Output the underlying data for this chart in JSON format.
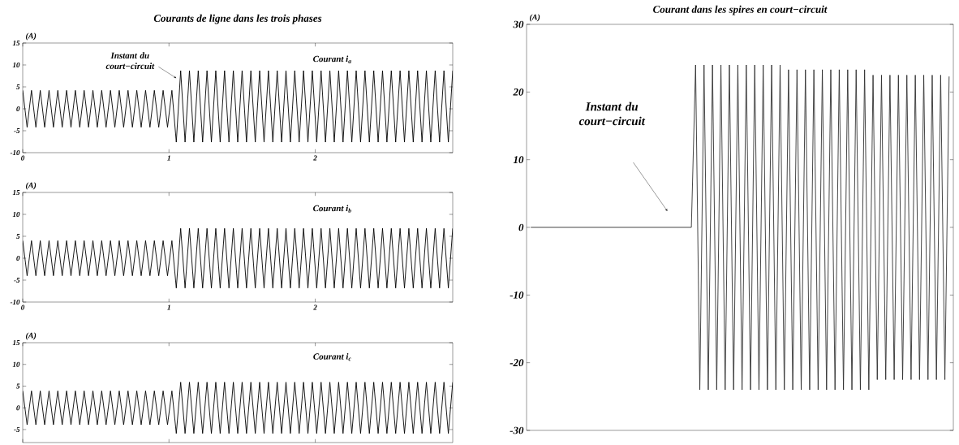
{
  "chart_data": [
    {
      "type": "line",
      "title": "Courants de ligne dans les trois phases",
      "ylabel": "(A)",
      "x": [
        0,
        0.03,
        0.06,
        0.09,
        0.12,
        0.15,
        0.18,
        0.21,
        0.24,
        0.27,
        0.3,
        0.33,
        0.36,
        0.39,
        0.42,
        0.45,
        0.48,
        0.51,
        0.54,
        0.57,
        0.6,
        0.63,
        0.66,
        0.69,
        0.72,
        0.75,
        0.78,
        0.81,
        0.84,
        0.87,
        0.9,
        0.93,
        0.96,
        0.99,
        1.02,
        1.05,
        1.08,
        1.11,
        1.14,
        1.17,
        1.2,
        1.23,
        1.26,
        1.29,
        1.32,
        1.35,
        1.38,
        1.41,
        1.44,
        1.47,
        1.5,
        1.53,
        1.56,
        1.59,
        1.62,
        1.65,
        1.68,
        1.71,
        1.74,
        1.77,
        1.8,
        1.83,
        1.86,
        1.89,
        1.92,
        1.95,
        1.98,
        2.01,
        2.04,
        2.07,
        2.1,
        2.13,
        2.16,
        2.19,
        2.22,
        2.25,
        2.28,
        2.31,
        2.34,
        2.37,
        2.4,
        2.43,
        2.46,
        2.49,
        2.52,
        2.55,
        2.58,
        2.61,
        2.64,
        2.67,
        2.7,
        2.73,
        2.76,
        2.79,
        2.82,
        2.85,
        2.88,
        2.91,
        2.94
      ],
      "series": [
        {
          "color": "#000000",
          "values": [
            4.2,
            -4.2,
            4.2,
            -4.2,
            4.2,
            -4.2,
            4.2,
            -4.2,
            4.2,
            -4.2,
            4.2,
            -4.2,
            4.2,
            -4.2,
            4.2,
            -4.2,
            4.2,
            -4.2,
            4.2,
            -4.2,
            4.2,
            -4.2,
            4.2,
            -4.2,
            4.2,
            -4.2,
            4.2,
            -4.2,
            4.2,
            -4.2,
            4.2,
            -4.2,
            4.2,
            -4.2,
            4.2,
            -7.6,
            8.7,
            -7.6,
            8.7,
            -7.6,
            8.7,
            -7.6,
            8.7,
            -7.6,
            8.7,
            -7.6,
            8.7,
            -7.6,
            8.7,
            -7.6,
            8.7,
            -7.6,
            8.7,
            -7.6,
            8.7,
            -7.6,
            8.7,
            -7.6,
            8.7,
            -7.6,
            8.7,
            -7.6,
            8.7,
            -7.6,
            8.7,
            -7.6,
            8.7,
            -7.6,
            8.7,
            -7.6,
            8.7,
            -7.6,
            8.7,
            -7.6,
            8.7,
            -7.6,
            8.7,
            -7.6,
            8.7,
            -7.6,
            8.7,
            -7.6,
            8.7,
            -7.6,
            8.7,
            -7.6,
            8.7,
            -7.6,
            8.7,
            -7.6,
            8.7,
            -7.6,
            8.7,
            -7.6,
            8.7,
            -7.6,
            8.7,
            -7.6,
            8.7
          ]
        }
      ],
      "xlim": [
        0,
        2.94
      ],
      "ylim": [
        -10,
        15
      ],
      "xticks": [
        0,
        1,
        2
      ],
      "yticks": [
        -10,
        -5,
        0,
        5,
        10,
        15
      ],
      "annotations": [
        {
          "text": "Instant du court−circuit",
          "x": 1.05,
          "y": 7
        },
        "Courant i$_{a}$"
      ]
    },
    {
      "type": "line",
      "ylabel": "(A)",
      "x": [
        0,
        0.03,
        0.06,
        0.09,
        0.12,
        0.15,
        0.18,
        0.21,
        0.24,
        0.27,
        0.3,
        0.33,
        0.36,
        0.39,
        0.42,
        0.45,
        0.48,
        0.51,
        0.54,
        0.57,
        0.6,
        0.63,
        0.66,
        0.69,
        0.72,
        0.75,
        0.78,
        0.81,
        0.84,
        0.87,
        0.9,
        0.93,
        0.96,
        0.99,
        1.02,
        1.05,
        1.08,
        1.11,
        1.14,
        1.17,
        1.2,
        1.23,
        1.26,
        1.29,
        1.32,
        1.35,
        1.38,
        1.41,
        1.44,
        1.47,
        1.5,
        1.53,
        1.56,
        1.59,
        1.62,
        1.65,
        1.68,
        1.71,
        1.74,
        1.77,
        1.8,
        1.83,
        1.86,
        1.89,
        1.92,
        1.95,
        1.98,
        2.01,
        2.04,
        2.07,
        2.1,
        2.13,
        2.16,
        2.19,
        2.22,
        2.25,
        2.28,
        2.31,
        2.34,
        2.37,
        2.4,
        2.43,
        2.46,
        2.49,
        2.52,
        2.55,
        2.58,
        2.61,
        2.64,
        2.67,
        2.7,
        2.73,
        2.76,
        2.79,
        2.82,
        2.85,
        2.88,
        2.91,
        2.94
      ],
      "series": [
        {
          "color": "#000000",
          "values": [
            4,
            -4,
            4,
            -4,
            4,
            -4,
            4,
            -4,
            4,
            -4,
            4,
            -4,
            4,
            -4,
            4,
            -4,
            4,
            -4,
            4,
            -4,
            4,
            -4,
            4,
            -4,
            4,
            -4,
            4,
            -4,
            4,
            -4,
            4,
            -4,
            4,
            -4,
            4,
            -6.8,
            6.8,
            -6.8,
            6.8,
            -6.8,
            6.8,
            -6.8,
            6.8,
            -6.8,
            6.8,
            -6.8,
            6.8,
            -6.8,
            6.8,
            -6.8,
            6.8,
            -6.8,
            6.8,
            -6.8,
            6.8,
            -6.8,
            6.8,
            -6.8,
            6.8,
            -6.8,
            6.8,
            -6.8,
            6.8,
            -6.8,
            6.8,
            -6.8,
            6.8,
            -6.8,
            6.8,
            -6.8,
            6.8,
            -6.8,
            6.8,
            -6.8,
            6.8,
            -6.8,
            6.8,
            -6.8,
            6.8,
            -6.8,
            6.8,
            -6.8,
            6.8,
            -6.8,
            6.8,
            -6.8,
            6.8,
            -6.8,
            6.8,
            -6.8,
            6.8,
            -6.8,
            6.8,
            -6.8,
            6.8,
            -6.8,
            6.8,
            -6.8,
            6.8
          ]
        }
      ],
      "xlim": [
        0,
        2.94
      ],
      "ylim": [
        -10,
        15
      ],
      "xticks": [
        0,
        1,
        2
      ],
      "yticks": [
        -10,
        -5,
        0,
        5,
        10,
        15
      ],
      "annotations": [
        "Courant i$_{b}$"
      ]
    },
    {
      "type": "line",
      "ylabel": "(A)",
      "x": [
        0,
        0.03,
        0.06,
        0.09,
        0.12,
        0.15,
        0.18,
        0.21,
        0.24,
        0.27,
        0.3,
        0.33,
        0.36,
        0.39,
        0.42,
        0.45,
        0.48,
        0.51,
        0.54,
        0.57,
        0.6,
        0.63,
        0.66,
        0.69,
        0.72,
        0.75,
        0.78,
        0.81,
        0.84,
        0.87,
        0.9,
        0.93,
        0.96,
        0.99,
        1.02,
        1.05,
        1.08,
        1.11,
        1.14,
        1.17,
        1.2,
        1.23,
        1.26,
        1.29,
        1.32,
        1.35,
        1.38,
        1.41,
        1.44,
        1.47,
        1.5,
        1.53,
        1.56,
        1.59,
        1.62,
        1.65,
        1.68,
        1.71,
        1.74,
        1.77,
        1.8,
        1.83,
        1.86,
        1.89,
        1.92,
        1.95,
        1.98,
        2.01,
        2.04,
        2.07,
        2.1,
        2.13,
        2.16,
        2.19,
        2.22,
        2.25,
        2.28,
        2.31,
        2.34,
        2.37,
        2.4,
        2.43,
        2.46,
        2.49,
        2.52,
        2.55,
        2.58,
        2.61,
        2.64,
        2.67,
        2.7,
        2.73,
        2.76,
        2.79,
        2.82,
        2.85,
        2.88,
        2.91,
        2.94
      ],
      "series": [
        {
          "color": "#000000",
          "values": [
            3.9,
            -3.9,
            3.9,
            -3.9,
            3.9,
            -3.9,
            3.9,
            -3.9,
            3.9,
            -3.9,
            3.9,
            -3.9,
            3.9,
            -3.9,
            3.9,
            -3.9,
            3.9,
            -3.9,
            3.9,
            -3.9,
            3.9,
            -3.9,
            3.9,
            -3.9,
            3.9,
            -3.9,
            3.9,
            -3.9,
            3.9,
            -3.9,
            3.9,
            -3.9,
            3.9,
            -3.9,
            3.9,
            -5.9,
            5.9,
            -5.9,
            5.9,
            -5.9,
            5.9,
            -5.9,
            5.9,
            -5.9,
            5.9,
            -5.9,
            5.9,
            -5.9,
            5.9,
            -5.9,
            5.9,
            -5.9,
            5.9,
            -5.9,
            5.9,
            -5.9,
            5.9,
            -5.9,
            5.9,
            -5.9,
            5.9,
            -5.9,
            5.9,
            -5.9,
            5.9,
            -5.9,
            5.9,
            -5.9,
            5.9,
            -5.9,
            5.9,
            -5.9,
            5.9,
            -5.9,
            5.9,
            -5.9,
            5.9,
            -5.9,
            5.9,
            -5.9,
            5.9,
            -5.9,
            5.9,
            -5.9,
            5.9,
            -5.9,
            5.9,
            -5.9,
            5.9,
            -5.9,
            5.9,
            -5.9,
            5.9,
            -5.9,
            5.9,
            -5.9,
            5.9,
            -5.9,
            5.9
          ]
        }
      ],
      "xlim": [
        0,
        2.94
      ],
      "ylim": [
        -8,
        15
      ],
      "xticks": [
        {
          "value": 0,
          "label": null
        },
        {
          "value": 1,
          "label": null
        },
        {
          "value": 2,
          "label": null
        }
      ],
      "yticks": [
        -5,
        0,
        5,
        10,
        15
      ],
      "tick_labels": "y",
      "annotations": [
        "Courant i$_{c}$"
      ]
    },
    {
      "type": "line",
      "title": "Courant dans les spires en court−circuit",
      "ylabel": "(A)",
      "categories": [
        null,
        null,
        null,
        null,
        null,
        null,
        null,
        null,
        null,
        null,
        null,
        null,
        null,
        null,
        null,
        null,
        null,
        null,
        null,
        null,
        null,
        null,
        null,
        null,
        null,
        null,
        null,
        null,
        null,
        null,
        null,
        null,
        null,
        null,
        null,
        null,
        null,
        null,
        null,
        null,
        null,
        null,
        null,
        null,
        null,
        null,
        null,
        null,
        null,
        null,
        null,
        null,
        null,
        null,
        null,
        null,
        null,
        null,
        null,
        null,
        null,
        null,
        null,
        null,
        null,
        null,
        null,
        null,
        null,
        null,
        null,
        null,
        null,
        null,
        null,
        null,
        null,
        null,
        null,
        null,
        null,
        null,
        null,
        null,
        null,
        null,
        null,
        null,
        null,
        null,
        null,
        null,
        null,
        null,
        null,
        null,
        null,
        null,
        null,
        null
      ],
      "series": [
        {
          "color": "#303030",
          "values": [
            0,
            0,
            0,
            0,
            0,
            0,
            0,
            0,
            0,
            0,
            0,
            0,
            0,
            0,
            0,
            0,
            0,
            0,
            0,
            0,
            0,
            0,
            0,
            0,
            0,
            0,
            0,
            0,
            0,
            0,
            0,
            0,
            0,
            0,
            0,
            0,
            0,
            0,
            0,
            24,
            -24,
            24,
            -24,
            24,
            -24,
            24,
            -24,
            24,
            -24,
            24,
            -24,
            24,
            -24,
            24,
            -24,
            24,
            -24,
            24,
            -24,
            24,
            -24,
            23.3,
            -24,
            23.3,
            -24,
            23.3,
            -24,
            23.3,
            -24,
            23.3,
            -24,
            23.3,
            -24,
            23.3,
            -24,
            23.3,
            -24,
            23.3,
            -24,
            23.3,
            -24,
            22.5,
            -22.5,
            22.5,
            -22.5,
            22.5,
            -22.5,
            22.5,
            -22.5,
            22.5,
            -22.5,
            22.5,
            -22.5,
            22.5,
            -22.5,
            22.5,
            -22.5,
            22.5,
            -22.5,
            22.3
          ]
        }
      ],
      "ylim": [
        -30,
        30
      ],
      "yticks": [
        -30,
        -20,
        -10,
        0,
        10,
        20,
        30
      ],
      "tick_labels": "y",
      "annotations": [
        "Instant du court−circuit"
      ]
    }
  ]
}
